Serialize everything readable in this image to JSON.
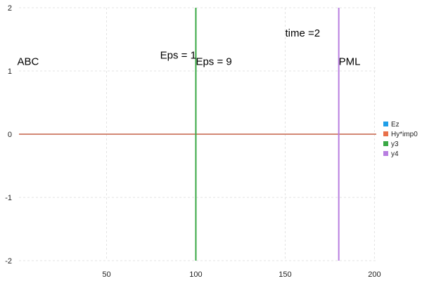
{
  "chart_data": {
    "type": "line",
    "title": "",
    "xlabel": "",
    "ylabel": "",
    "xlim": [
      1,
      201
    ],
    "ylim": [
      -2,
      2
    ],
    "x_ticks": [
      50,
      100,
      150,
      200
    ],
    "y_ticks": [
      -2,
      -1,
      0,
      1,
      2
    ],
    "grid": true,
    "legend_position": "right",
    "series": [
      {
        "name": "Ez",
        "color": "#1f9ee8",
        "kind": "line",
        "x": [
          1,
          201
        ],
        "y": [
          0,
          0
        ]
      },
      {
        "name": "Hy*imp0",
        "color": "#e8704a",
        "kind": "line",
        "x": [
          1,
          201
        ],
        "y": [
          0,
          0
        ]
      },
      {
        "name": "y3",
        "color": "#3aa845",
        "kind": "vline",
        "x": [
          100,
          100
        ],
        "y": [
          -2,
          2
        ]
      },
      {
        "name": "y4",
        "color": "#b87ee0",
        "kind": "vline",
        "x": [
          180,
          180
        ],
        "y": [
          -2,
          2
        ]
      }
    ],
    "annotations": [
      {
        "text": "ABC",
        "x": 0,
        "y": 1.15
      },
      {
        "text": "Eps = 1",
        "x": 80,
        "y": 1.25
      },
      {
        "text": "Eps = 9",
        "x": 100,
        "y": 1.15
      },
      {
        "text": "time =2",
        "x": 150,
        "y": 1.6
      },
      {
        "text": "PML",
        "x": 180,
        "y": 1.15
      }
    ]
  }
}
